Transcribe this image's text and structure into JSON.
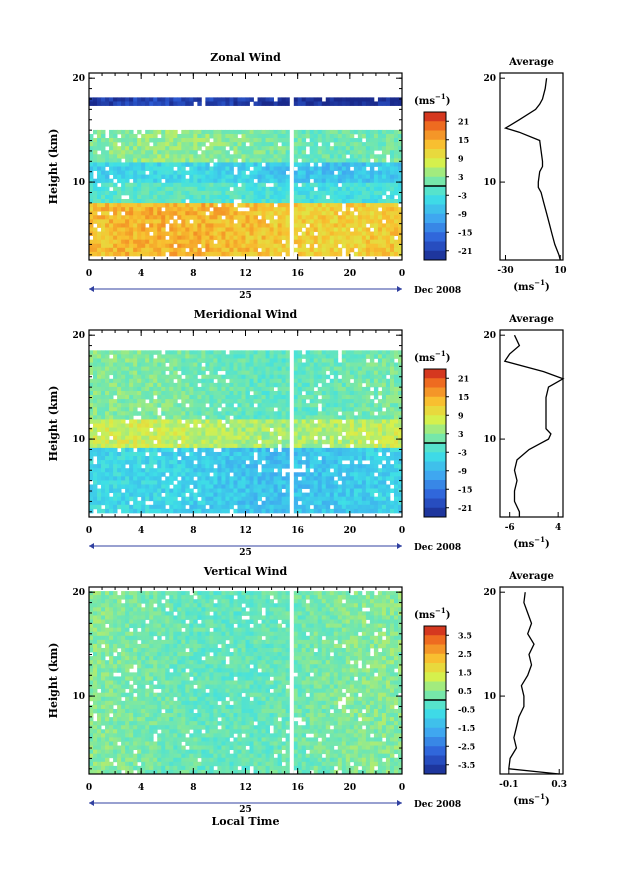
{
  "chart_data": [
    {
      "type": "heatmap",
      "title": "Zonal Wind",
      "ylabel": "Height (km)",
      "yticks": [
        "20",
        "10"
      ],
      "ylim": [
        2.5,
        20.5
      ],
      "xticks": [
        "0",
        "4",
        "8",
        "12",
        "16",
        "20",
        "0"
      ],
      "xlim": [
        0,
        24
      ],
      "date_day": "25",
      "date_month": "Dec 2008",
      "colorbar": {
        "unit_prefix": "(ms",
        "unit_exp": "−1",
        "unit_suffix": ")",
        "ticks": [
          "21",
          "15",
          "9",
          "3",
          "-3",
          "-9",
          "-15",
          "-21"
        ],
        "range": [
          -24,
          24
        ]
      },
      "profile": {
        "title": "Average",
        "xticks": [
          "-30",
          "10"
        ],
        "xlim": [
          -34,
          12
        ],
        "unit_prefix": "(ms",
        "unit_exp": "−1",
        "unit_suffix": ")",
        "heights": [
          2.5,
          3,
          4,
          5,
          6,
          7,
          8,
          9,
          9.5,
          10,
          11,
          11.5,
          12,
          13,
          14,
          14.8,
          15.2,
          16,
          17,
          17.5,
          18,
          19,
          20
        ],
        "values": [
          10,
          9,
          6,
          4,
          2,
          0,
          -2,
          -4,
          -6,
          -6,
          -5,
          -3,
          -3,
          -4,
          -5,
          -20,
          -30,
          -20,
          -8,
          -5,
          -3,
          -1,
          0
        ]
      },
      "field": {
        "layers": [
          {
            "z": [
              3,
              8
            ],
            "value": 13
          },
          {
            "z": [
              8,
              10
            ],
            "value": -2
          },
          {
            "z": [
              10,
              12
            ],
            "value": -6
          },
          {
            "z": [
              12,
              15
            ],
            "value": 2
          },
          {
            "z": [
              17.2,
              18.2
            ],
            "value": -22
          }
        ]
      }
    },
    {
      "type": "heatmap",
      "title": "Meridional Wind",
      "ylabel": "Height (km)",
      "yticks": [
        "20",
        "10"
      ],
      "ylim": [
        2.5,
        20.5
      ],
      "xticks": [
        "0",
        "4",
        "8",
        "12",
        "16",
        "20",
        "0"
      ],
      "xlim": [
        0,
        24
      ],
      "date_day": "25",
      "date_month": "Dec 2008",
      "colorbar": {
        "unit_prefix": "(ms",
        "unit_exp": "−1",
        "unit_suffix": ")",
        "ticks": [
          "21",
          "15",
          "9",
          "3",
          "-3",
          "-9",
          "-15",
          "-21"
        ],
        "range": [
          -24,
          24
        ]
      },
      "profile": {
        "title": "Average",
        "xticks": [
          "-6",
          "4"
        ],
        "xlim": [
          -8,
          5
        ],
        "unit_prefix": "(ms",
        "unit_exp": "−1",
        "unit_suffix": ")",
        "heights": [
          2.5,
          3,
          4,
          5,
          6,
          7,
          8,
          9,
          9.5,
          10,
          10.5,
          11,
          12,
          13,
          14,
          15,
          15.8,
          16.5,
          17.5,
          18.2,
          19,
          20
        ],
        "values": [
          -4,
          -4,
          -5,
          -5,
          -4.5,
          -5,
          -4.5,
          -2,
          0,
          2,
          2.5,
          1.5,
          1.5,
          1.5,
          1.5,
          2,
          5,
          1,
          -7,
          -6,
          -4,
          -5
        ]
      },
      "field": {
        "layers": [
          {
            "z": [
              3,
              9
            ],
            "value": -6
          },
          {
            "z": [
              9,
              12
            ],
            "value": 6
          },
          {
            "z": [
              12,
              18
            ],
            "value": 1
          },
          {
            "z": [
              18,
              18.6
            ],
            "value": 1
          }
        ]
      }
    },
    {
      "type": "heatmap",
      "title": "Vertical Wind",
      "ylabel": "Height (km)",
      "xlabel": "Local Time",
      "yticks": [
        "20",
        "10"
      ],
      "ylim": [
        2.5,
        20.5
      ],
      "xticks": [
        "0",
        "4",
        "8",
        "12",
        "16",
        "20",
        "0"
      ],
      "xlim": [
        0,
        24
      ],
      "date_day": "25",
      "date_month": "Dec 2008",
      "colorbar": {
        "unit_prefix": "(ms",
        "unit_exp": "−1",
        "unit_suffix": ")",
        "ticks": [
          "3.5",
          "2.5",
          "1.5",
          "0.5",
          "-0.5",
          "-1.5",
          "-2.5",
          "-3.5"
        ],
        "range": [
          -4,
          4
        ]
      },
      "profile": {
        "title": "Average",
        "xticks": [
          "-0.1",
          "0.3"
        ],
        "xlim": [
          -0.17,
          0.33
        ],
        "unit_prefix": "(ms",
        "unit_exp": "−1",
        "unit_suffix": ")",
        "heights": [
          2.5,
          3,
          4,
          5,
          6,
          7,
          8,
          9,
          10,
          11,
          12,
          13,
          14,
          15,
          16,
          17,
          18,
          19,
          20
        ],
        "values": [
          0.3,
          -0.1,
          -0.09,
          -0.04,
          -0.06,
          -0.04,
          -0.02,
          0.02,
          0.02,
          0.0,
          0.05,
          0.08,
          0.06,
          0.1,
          0.05,
          0.08,
          0.05,
          0.02,
          0.03
        ]
      },
      "field": {
        "layers": [
          {
            "z": [
              2.5,
              20
            ],
            "value": 0.2
          }
        ]
      }
    }
  ]
}
